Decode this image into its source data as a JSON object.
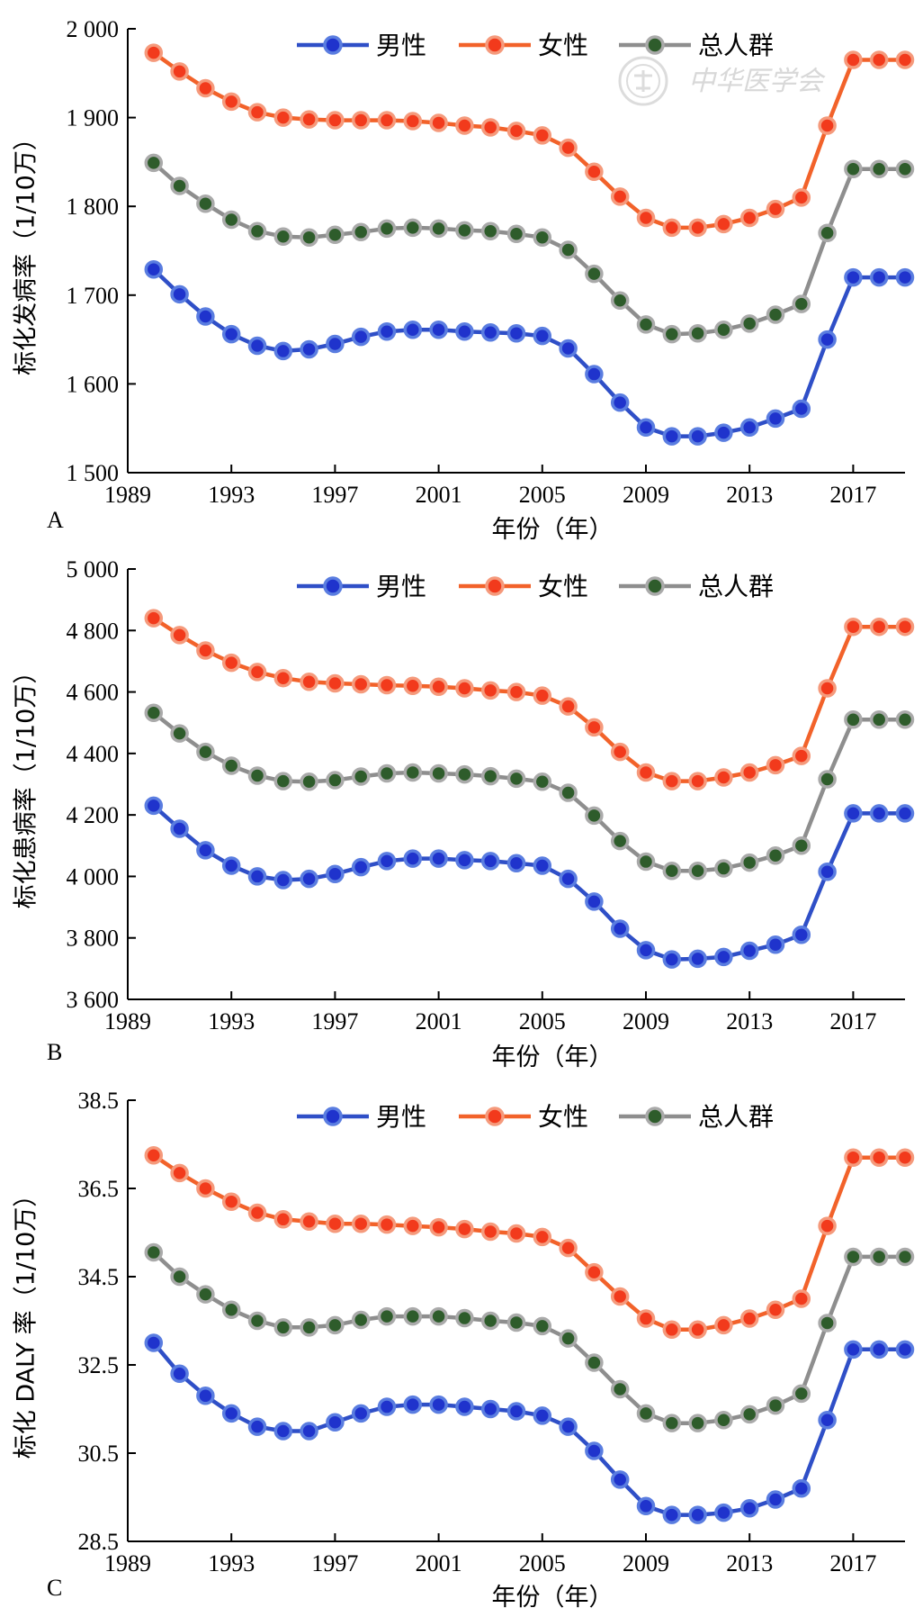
{
  "watermark": {
    "text": "中华医学会"
  },
  "colors": {
    "男性": "#2f4fc7",
    "女性": "#f2622a",
    "总人群": "#8e8e8e"
  },
  "chart_data": [
    {
      "type": "line",
      "panel": "A",
      "xlabel": "年份（年）",
      "ylabel": "标化发病率（1/10万）",
      "xlim": [
        1989,
        2019
      ],
      "ylim": [
        1500,
        2000
      ],
      "xticks": [
        1989,
        1993,
        1997,
        2001,
        2005,
        2009,
        2013,
        2017
      ],
      "xtick_labels": [
        "1989",
        "1993",
        "1997",
        "2001",
        "2005",
        "2009",
        "2013",
        "2017"
      ],
      "yticks": [
        1500,
        1600,
        1700,
        1800,
        1900,
        2000
      ],
      "ytick_labels": [
        "1 500",
        "1 600",
        "1 700",
        "1 800",
        "1 900",
        "2 000"
      ],
      "legend": "top-center",
      "x": [
        1990,
        1991,
        1992,
        1993,
        1994,
        1995,
        1996,
        1997,
        1998,
        1999,
        2000,
        2001,
        2002,
        2003,
        2004,
        2005,
        2006,
        2007,
        2008,
        2009,
        2010,
        2011,
        2012,
        2013,
        2014,
        2015,
        2016,
        2017,
        2018,
        2019
      ],
      "series": [
        {
          "name": "男性",
          "values": [
            1729,
            1701,
            1676,
            1656,
            1643,
            1637,
            1639,
            1645,
            1653,
            1659,
            1661,
            1661,
            1659,
            1658,
            1657,
            1654,
            1640,
            1611,
            1579,
            1551,
            1541,
            1541,
            1545,
            1551,
            1561,
            1572,
            1650,
            1720,
            1720,
            1720
          ]
        },
        {
          "name": "女性",
          "values": [
            1973,
            1952,
            1933,
            1918,
            1906,
            1900,
            1898,
            1897,
            1897,
            1897,
            1896,
            1894,
            1891,
            1889,
            1885,
            1880,
            1866,
            1839,
            1811,
            1787,
            1776,
            1776,
            1780,
            1787,
            1797,
            1810,
            1891,
            1965,
            1965,
            1965
          ]
        },
        {
          "name": "总人群",
          "values": [
            1849,
            1823,
            1803,
            1785,
            1772,
            1766,
            1765,
            1768,
            1771,
            1775,
            1776,
            1775,
            1773,
            1772,
            1769,
            1765,
            1751,
            1724,
            1694,
            1667,
            1656,
            1657,
            1661,
            1668,
            1678,
            1690,
            1770,
            1842,
            1842,
            1842
          ]
        }
      ]
    },
    {
      "type": "line",
      "panel": "B",
      "xlabel": "年份（年）",
      "ylabel": "标化患病率（1/10万）",
      "xlim": [
        1989,
        2019
      ],
      "ylim": [
        3600,
        5000
      ],
      "xticks": [
        1989,
        1993,
        1997,
        2001,
        2005,
        2009,
        2013,
        2017
      ],
      "xtick_labels": [
        "1989",
        "1993",
        "1997",
        "2001",
        "2005",
        "2009",
        "2013",
        "2017"
      ],
      "yticks": [
        3600,
        3800,
        4000,
        4200,
        4400,
        4600,
        4800,
        5000
      ],
      "ytick_labels": [
        "3 600",
        "3 800",
        "4 000",
        "4 200",
        "4 400",
        "4 600",
        "4 800",
        "5 000"
      ],
      "legend": "top-center",
      "x": [
        1990,
        1991,
        1992,
        1993,
        1994,
        1995,
        1996,
        1997,
        1998,
        1999,
        2000,
        2001,
        2002,
        2003,
        2004,
        2005,
        2006,
        2007,
        2008,
        2009,
        2010,
        2011,
        2012,
        2013,
        2014,
        2015,
        2016,
        2017,
        2018,
        2019
      ],
      "series": [
        {
          "name": "男性",
          "values": [
            4230,
            4155,
            4085,
            4035,
            4000,
            3988,
            3992,
            4008,
            4030,
            4050,
            4058,
            4058,
            4053,
            4050,
            4043,
            4035,
            3992,
            3918,
            3830,
            3760,
            3730,
            3732,
            3738,
            3758,
            3778,
            3810,
            4015,
            4205,
            4205,
            4205
          ]
        },
        {
          "name": "女性",
          "values": [
            4840,
            4785,
            4735,
            4695,
            4665,
            4645,
            4633,
            4628,
            4625,
            4622,
            4620,
            4617,
            4612,
            4605,
            4600,
            4588,
            4553,
            4485,
            4405,
            4338,
            4310,
            4310,
            4322,
            4338,
            4362,
            4392,
            4612,
            4812,
            4812,
            4812
          ]
        },
        {
          "name": "总人群",
          "values": [
            4532,
            4465,
            4405,
            4360,
            4328,
            4310,
            4308,
            4313,
            4325,
            4335,
            4338,
            4335,
            4332,
            4326,
            4318,
            4308,
            4272,
            4198,
            4115,
            4048,
            4018,
            4018,
            4026,
            4045,
            4068,
            4100,
            4316,
            4510,
            4510,
            4510
          ]
        }
      ]
    },
    {
      "type": "line",
      "panel": "C",
      "xlabel": "年份（年）",
      "ylabel": "标化 DALY 率（1/10万）",
      "xlim": [
        1989,
        2019
      ],
      "ylim": [
        28.5,
        38.5
      ],
      "xticks": [
        1989,
        1993,
        1997,
        2001,
        2005,
        2009,
        2013,
        2017
      ],
      "xtick_labels": [
        "1989",
        "1993",
        "1997",
        "2001",
        "2005",
        "2009",
        "2013",
        "2017"
      ],
      "yticks": [
        28.5,
        30.5,
        32.5,
        34.5,
        36.5,
        38.5
      ],
      "ytick_labels": [
        "28.5",
        "30.5",
        "32.5",
        "34.5",
        "36.5",
        "38.5"
      ],
      "legend": "top-center",
      "x": [
        1990,
        1991,
        1992,
        1993,
        1994,
        1995,
        1996,
        1997,
        1998,
        1999,
        2000,
        2001,
        2002,
        2003,
        2004,
        2005,
        2006,
        2007,
        2008,
        2009,
        2010,
        2011,
        2012,
        2013,
        2014,
        2015,
        2016,
        2017,
        2018,
        2019
      ],
      "series": [
        {
          "name": "男性",
          "values": [
            33.0,
            32.3,
            31.8,
            31.4,
            31.1,
            31.0,
            31.0,
            31.2,
            31.4,
            31.55,
            31.6,
            31.6,
            31.55,
            31.5,
            31.45,
            31.35,
            31.1,
            30.55,
            29.9,
            29.3,
            29.1,
            29.1,
            29.15,
            29.25,
            29.45,
            29.7,
            31.25,
            32.85,
            32.85,
            32.85
          ]
        },
        {
          "name": "女性",
          "values": [
            37.25,
            36.85,
            36.5,
            36.2,
            35.95,
            35.8,
            35.75,
            35.7,
            35.7,
            35.68,
            35.65,
            35.62,
            35.58,
            35.52,
            35.48,
            35.4,
            35.15,
            34.6,
            34.05,
            33.55,
            33.3,
            33.3,
            33.4,
            33.55,
            33.75,
            34.0,
            35.65,
            37.2,
            37.2,
            37.2
          ]
        },
        {
          "name": "总人群",
          "values": [
            35.05,
            34.5,
            34.1,
            33.75,
            33.5,
            33.35,
            33.35,
            33.4,
            33.52,
            33.6,
            33.6,
            33.6,
            33.56,
            33.5,
            33.46,
            33.38,
            33.1,
            32.55,
            31.95,
            31.4,
            31.18,
            31.18,
            31.25,
            31.38,
            31.58,
            31.85,
            33.45,
            34.95,
            34.95,
            34.95
          ]
        }
      ]
    }
  ]
}
